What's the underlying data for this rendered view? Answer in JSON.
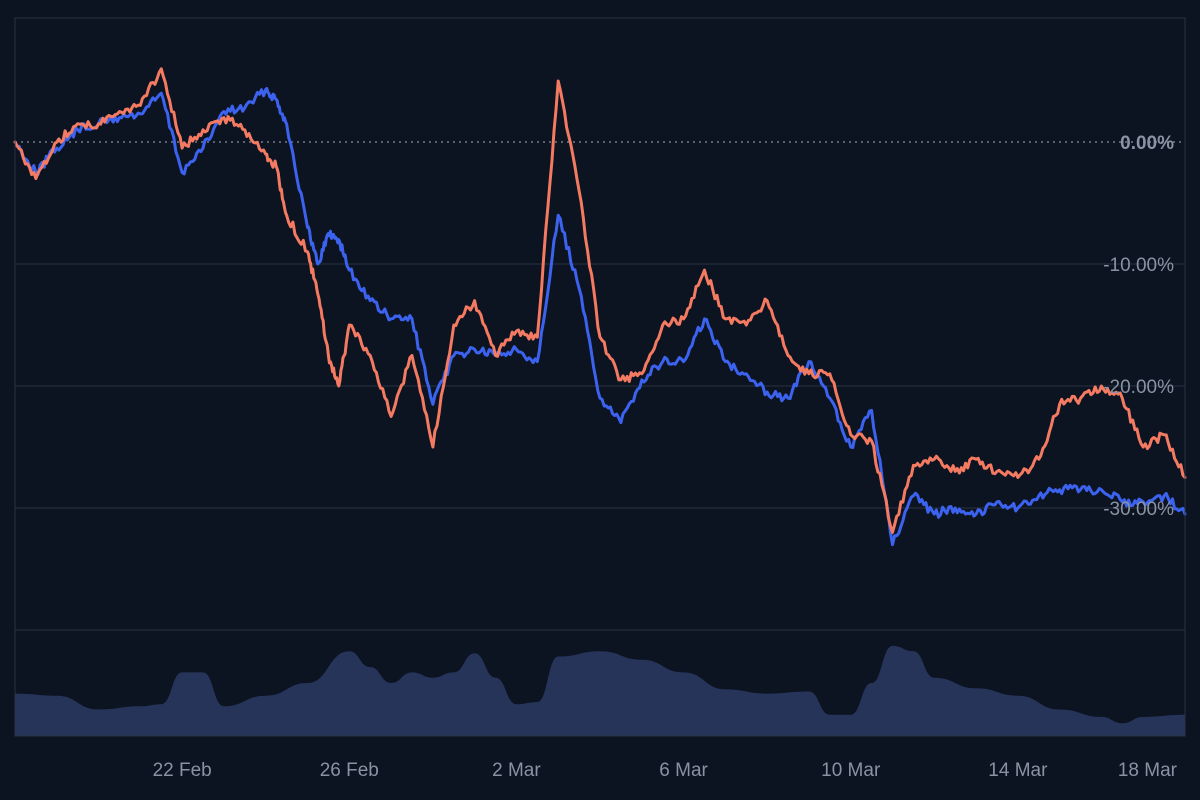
{
  "theme": {
    "background": "#0c1321",
    "frame": "#2a3344",
    "grid": "#2a3344",
    "zero_line": "#8a93a3",
    "label": "#8a93a3",
    "volume_fill": "#27345a"
  },
  "chart_data": {
    "type": "line",
    "title": "",
    "xlabel": "",
    "ylabel": "",
    "x_range": [
      "2025-02-18",
      "2025-03-18"
    ],
    "x_ticks": [
      {
        "date": "2025-02-22",
        "label": "22 Feb"
      },
      {
        "date": "2025-02-26",
        "label": "26 Feb"
      },
      {
        "date": "2025-03-02",
        "label": "2 Mar"
      },
      {
        "date": "2025-03-06",
        "label": "6 Mar"
      },
      {
        "date": "2025-03-10",
        "label": "10 Mar"
      },
      {
        "date": "2025-03-14",
        "label": "14 Mar"
      },
      {
        "date": "2025-03-18",
        "label": "18 Mar"
      }
    ],
    "y_unit": "%",
    "ylim": [
      -40,
      10
    ],
    "y_ticks": [
      {
        "value": 0,
        "label": "0.00%"
      },
      {
        "value": -10,
        "label": "-10.00%"
      },
      {
        "value": -20,
        "label": "-20.00%"
      },
      {
        "value": -30,
        "label": "-30.00%"
      }
    ],
    "zero_line": "dotted",
    "grid": true,
    "legend": "none",
    "series": [
      {
        "color": "#3c63f0",
        "points": [
          [
            "2025-02-18",
            0
          ],
          [
            "2025-02-18 12:00",
            -2.5
          ],
          [
            "2025-02-19",
            -0.5
          ],
          [
            "2025-02-19 12:00",
            1.0
          ],
          [
            "2025-02-20",
            1.5
          ],
          [
            "2025-02-20 12:00",
            2.0
          ],
          [
            "2025-02-21",
            2.3
          ],
          [
            "2025-02-21 12:00",
            4.0
          ],
          [
            "2025-02-22",
            -2.5
          ],
          [
            "2025-02-22 12:00",
            -0.5
          ],
          [
            "2025-02-23",
            2.5
          ],
          [
            "2025-02-23 12:00",
            2.8
          ],
          [
            "2025-02-24",
            4.3
          ],
          [
            "2025-02-24 06:00",
            3.5
          ],
          [
            "2025-02-24 12:00",
            1.5
          ],
          [
            "2025-02-25",
            -7.0
          ],
          [
            "2025-02-25 06:00",
            -10.0
          ],
          [
            "2025-02-25 12:00",
            -7.5
          ],
          [
            "2025-02-25 18:00",
            -8.0
          ],
          [
            "2025-02-26",
            -10.5
          ],
          [
            "2025-02-26 12:00",
            -13.0
          ],
          [
            "2025-02-27",
            -14.5
          ],
          [
            "2025-02-27 12:00",
            -14.5
          ],
          [
            "2025-02-28",
            -21.5
          ],
          [
            "2025-02-28 12:00",
            -17.5
          ],
          [
            "2025-03-01",
            -17.0
          ],
          [
            "2025-03-01 12:00",
            -17.5
          ],
          [
            "2025-03-02",
            -17.0
          ],
          [
            "2025-03-02 12:00",
            -18.0
          ],
          [
            "2025-03-03",
            -6.0
          ],
          [
            "2025-03-03 12:00",
            -12.0
          ],
          [
            "2025-03-04",
            -21.0
          ],
          [
            "2025-03-04 12:00",
            -23.0
          ],
          [
            "2025-03-05",
            -19.5
          ],
          [
            "2025-03-05 12:00",
            -18.0
          ],
          [
            "2025-03-06",
            -18.0
          ],
          [
            "2025-03-06 12:00",
            -14.5
          ],
          [
            "2025-03-07",
            -18.0
          ],
          [
            "2025-03-07 12:00",
            -19.0
          ],
          [
            "2025-03-08",
            -20.5
          ],
          [
            "2025-03-08 12:00",
            -21.0
          ],
          [
            "2025-03-09",
            -18.0
          ],
          [
            "2025-03-09 12:00",
            -21.0
          ],
          [
            "2025-03-10",
            -25.0
          ],
          [
            "2025-03-10 12:00",
            -22.0
          ],
          [
            "2025-03-11",
            -33.0
          ],
          [
            "2025-03-11 12:00",
            -29.0
          ],
          [
            "2025-03-12",
            -30.5
          ],
          [
            "2025-03-12 12:00",
            -30.0
          ],
          [
            "2025-03-13",
            -30.5
          ],
          [
            "2025-03-13 12:00",
            -29.5
          ],
          [
            "2025-03-14",
            -30.0
          ],
          [
            "2025-03-14 12:00",
            -29.0
          ],
          [
            "2025-03-15",
            -28.5
          ],
          [
            "2025-03-15 12:00",
            -28.5
          ],
          [
            "2025-03-16",
            -28.5
          ],
          [
            "2025-03-16 12:00",
            -29.5
          ],
          [
            "2025-03-17",
            -29.5
          ],
          [
            "2025-03-17 12:00",
            -29.0
          ],
          [
            "2025-03-18",
            -30.5
          ]
        ]
      },
      {
        "color": "#f47a61",
        "points": [
          [
            "2025-02-18",
            0
          ],
          [
            "2025-02-18 12:00",
            -3.0
          ],
          [
            "2025-02-19",
            0
          ],
          [
            "2025-02-19 12:00",
            1.5
          ],
          [
            "2025-02-20",
            1.5
          ],
          [
            "2025-02-20 12:00",
            2.5
          ],
          [
            "2025-02-21",
            3.0
          ],
          [
            "2025-02-21 12:00",
            6.0
          ],
          [
            "2025-02-22",
            -0.5
          ],
          [
            "2025-02-22 12:00",
            1.0
          ],
          [
            "2025-02-23",
            2.0
          ],
          [
            "2025-02-23 12:00",
            1.0
          ],
          [
            "2025-02-24",
            -1.0
          ],
          [
            "2025-02-24 06:00",
            -2.0
          ],
          [
            "2025-02-24 12:00",
            -6.0
          ],
          [
            "2025-02-25",
            -9.0
          ],
          [
            "2025-02-25 06:00",
            -12.5
          ],
          [
            "2025-02-25 12:00",
            -17.5
          ],
          [
            "2025-02-25 18:00",
            -20.0
          ],
          [
            "2025-02-26",
            -15.0
          ],
          [
            "2025-02-26 12:00",
            -17.5
          ],
          [
            "2025-02-27",
            -22.5
          ],
          [
            "2025-02-27 12:00",
            -17.5
          ],
          [
            "2025-02-28",
            -25.0
          ],
          [
            "2025-02-28 12:00",
            -15.0
          ],
          [
            "2025-03-01",
            -13.0
          ],
          [
            "2025-03-01 12:00",
            -17.5
          ],
          [
            "2025-03-02",
            -15.5
          ],
          [
            "2025-03-02 12:00",
            -16.0
          ],
          [
            "2025-03-03",
            5.0
          ],
          [
            "2025-03-03 12:00",
            -4.0
          ],
          [
            "2025-03-04",
            -16.0
          ],
          [
            "2025-03-04 12:00",
            -19.5
          ],
          [
            "2025-03-05",
            -19.0
          ],
          [
            "2025-03-05 12:00",
            -15.0
          ],
          [
            "2025-03-06",
            -14.5
          ],
          [
            "2025-03-06 12:00",
            -10.5
          ],
          [
            "2025-03-07",
            -14.5
          ],
          [
            "2025-03-07 12:00",
            -15.0
          ],
          [
            "2025-03-08",
            -13.0
          ],
          [
            "2025-03-08 12:00",
            -17.5
          ],
          [
            "2025-03-09",
            -19.0
          ],
          [
            "2025-03-09 12:00",
            -19.0
          ],
          [
            "2025-03-10",
            -24.0
          ],
          [
            "2025-03-10 12:00",
            -24.5
          ],
          [
            "2025-03-11",
            -32.0
          ],
          [
            "2025-03-11 12:00",
            -26.5
          ],
          [
            "2025-03-12",
            -26.0
          ],
          [
            "2025-03-12 12:00",
            -27.0
          ],
          [
            "2025-03-13",
            -26.0
          ],
          [
            "2025-03-13 12:00",
            -27.0
          ],
          [
            "2025-03-14",
            -27.5
          ],
          [
            "2025-03-14 12:00",
            -26.0
          ],
          [
            "2025-03-15",
            -21.5
          ],
          [
            "2025-03-15 12:00",
            -21.0
          ],
          [
            "2025-03-16",
            -20.0
          ],
          [
            "2025-03-16 12:00",
            -21.0
          ],
          [
            "2025-03-17",
            -25.0
          ],
          [
            "2025-03-17 12:00",
            -24.0
          ],
          [
            "2025-03-18",
            -27.5
          ]
        ]
      }
    ],
    "volume": [
      [
        "2025-02-18",
        0.4
      ],
      [
        "2025-02-19",
        0.38
      ],
      [
        "2025-02-20",
        0.25
      ],
      [
        "2025-02-21",
        0.28
      ],
      [
        "2025-02-21 12:00",
        0.3
      ],
      [
        "2025-02-22",
        0.6
      ],
      [
        "2025-02-22 12:00",
        0.6
      ],
      [
        "2025-02-23",
        0.28
      ],
      [
        "2025-02-24",
        0.38
      ],
      [
        "2025-02-25",
        0.5
      ],
      [
        "2025-02-26",
        0.8
      ],
      [
        "2025-02-26 12:00",
        0.65
      ],
      [
        "2025-02-27",
        0.5
      ],
      [
        "2025-02-27 12:00",
        0.6
      ],
      [
        "2025-02-28",
        0.55
      ],
      [
        "2025-02-28 12:00",
        0.6
      ],
      [
        "2025-03-01",
        0.78
      ],
      [
        "2025-03-01 12:00",
        0.55
      ],
      [
        "2025-03-02",
        0.3
      ],
      [
        "2025-03-02 12:00",
        0.32
      ],
      [
        "2025-03-03",
        0.75
      ],
      [
        "2025-03-04",
        0.8
      ],
      [
        "2025-03-05",
        0.72
      ],
      [
        "2025-03-06",
        0.6
      ],
      [
        "2025-03-07",
        0.44
      ],
      [
        "2025-03-08",
        0.4
      ],
      [
        "2025-03-09",
        0.42
      ],
      [
        "2025-03-09 12:00",
        0.2
      ],
      [
        "2025-03-10",
        0.2
      ],
      [
        "2025-03-10 12:00",
        0.5
      ],
      [
        "2025-03-11",
        0.85
      ],
      [
        "2025-03-11 12:00",
        0.8
      ],
      [
        "2025-03-12",
        0.55
      ],
      [
        "2025-03-13",
        0.45
      ],
      [
        "2025-03-14",
        0.38
      ],
      [
        "2025-03-15",
        0.25
      ],
      [
        "2025-03-16",
        0.18
      ],
      [
        "2025-03-16 12:00",
        0.12
      ],
      [
        "2025-03-17",
        0.18
      ],
      [
        "2025-03-18",
        0.2
      ]
    ]
  }
}
